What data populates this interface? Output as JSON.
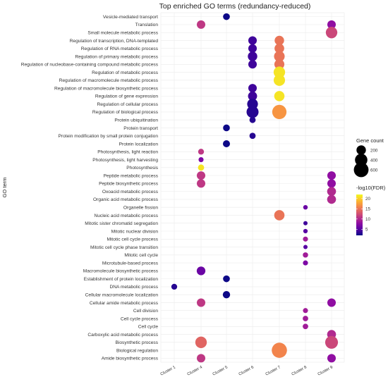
{
  "chart_data": {
    "type": "scatter",
    "title": "Top enriched GO terms (redundancy-reduced)",
    "xlabel": "",
    "ylabel": "GO term",
    "categories_x": [
      "Cluster 1",
      "Cluster 4",
      "Cluster 5",
      "Cluster 6",
      "Cluster 7",
      "Cluster 8",
      "Cluster 9"
    ],
    "categories_y": [
      "Vesicle-mediated transport",
      "Translation",
      "Small molecule metabolic process",
      "Regulation of transcription, DNA-templated",
      "Regulation of RNA metabolic process",
      "Regulation of primary metabolic process",
      "Regulation of nucleobase-containing compound metabolic process",
      "Regulation of metabolic process",
      "Regulation of macromolecule metabolic process",
      "Regulation of macromolecule biosynthetic process",
      "Regulation of gene expression",
      "Regulation of cellular process",
      "Regulation of biological process",
      "Protein ubiquitination",
      "Protein transport",
      "Protein modification by small protein conjugation",
      "Protein localization",
      "Photosynthesis, light reaction",
      "Photosynthesis, light harvesting",
      "Photosynthesis",
      "Peptide metabolic process",
      "Peptide biosynthetic process",
      "Oxoacid metabolic process",
      "Organic acid metabolic process",
      "Organelle fission",
      "Nucleic acid metabolic process",
      "Mitotic sister chromatid segregation",
      "Mitotic nuclear division",
      "Mitotic cell cycle process",
      "Mitotic cell cycle phase transition",
      "Mitotic cell cycle",
      "Microtubule-based process",
      "Macromolecule biosynthetic process",
      "Establishment of protein localization",
      "DNA metabolic process",
      "Cellular macromolecule localization",
      "Cellular amide metabolic process",
      "Cell division",
      "Cell cycle process",
      "Cell cycle",
      "Carboxylic acid metabolic process",
      "Biosynthetic process",
      "Biological regulation",
      "Amide biosynthetic process"
    ],
    "points": [
      {
        "term": "Vesicle-mediated transport",
        "cluster": "Cluster 5",
        "count": 80,
        "neglog10fdr": 2
      },
      {
        "term": "Translation",
        "cluster": "Cluster 4",
        "count": 150,
        "neglog10fdr": 11
      },
      {
        "term": "Translation",
        "cluster": "Cluster 9",
        "count": 150,
        "neglog10fdr": 8
      },
      {
        "term": "Small molecule metabolic process",
        "cluster": "Cluster 9",
        "count": 330,
        "neglog10fdr": 12
      },
      {
        "term": "Regulation of transcription, DNA-templated",
        "cluster": "Cluster 6",
        "count": 150,
        "neglog10fdr": 4
      },
      {
        "term": "Regulation of transcription, DNA-templated",
        "cluster": "Cluster 7",
        "count": 200,
        "neglog10fdr": 15
      },
      {
        "term": "Regulation of RNA metabolic process",
        "cluster": "Cluster 6",
        "count": 150,
        "neglog10fdr": 4
      },
      {
        "term": "Regulation of RNA metabolic process",
        "cluster": "Cluster 7",
        "count": 210,
        "neglog10fdr": 15
      },
      {
        "term": "Regulation of primary metabolic process",
        "cluster": "Cluster 6",
        "count": 200,
        "neglog10fdr": 4
      },
      {
        "term": "Regulation of primary metabolic process",
        "cluster": "Cluster 7",
        "count": 270,
        "neglog10fdr": 15
      },
      {
        "term": "Regulation of nucleobase-containing compound metabolic process",
        "cluster": "Cluster 6",
        "count": 150,
        "neglog10fdr": 4
      },
      {
        "term": "Regulation of nucleobase-containing compound metabolic process",
        "cluster": "Cluster 7",
        "count": 230,
        "neglog10fdr": 15
      },
      {
        "term": "Regulation of metabolic process",
        "cluster": "Cluster 7",
        "count": 330,
        "neglog10fdr": 21
      },
      {
        "term": "Regulation of macromolecule metabolic process",
        "cluster": "Cluster 7",
        "count": 320,
        "neglog10fdr": 21
      },
      {
        "term": "Regulation of macromolecule biosynthetic process",
        "cluster": "Cluster 6",
        "count": 150,
        "neglog10fdr": 4
      },
      {
        "term": "Regulation of gene expression",
        "cluster": "Cluster 6",
        "count": 180,
        "neglog10fdr": 4
      },
      {
        "term": "Regulation of gene expression",
        "cluster": "Cluster 7",
        "count": 250,
        "neglog10fdr": 21
      },
      {
        "term": "Regulation of cellular process",
        "cluster": "Cluster 6",
        "count": 280,
        "neglog10fdr": 3
      },
      {
        "term": "Regulation of biological process",
        "cluster": "Cluster 6",
        "count": 370,
        "neglog10fdr": 3
      },
      {
        "term": "Regulation of biological process",
        "cluster": "Cluster 7",
        "count": 560,
        "neglog10fdr": 17
      },
      {
        "term": "Protein ubiquitination",
        "cluster": "Cluster 6",
        "count": 60,
        "neglog10fdr": 3
      },
      {
        "term": "Protein transport",
        "cluster": "Cluster 5",
        "count": 80,
        "neglog10fdr": 2
      },
      {
        "term": "Protein modification by small protein conjugation",
        "cluster": "Cluster 6",
        "count": 60,
        "neglog10fdr": 3
      },
      {
        "term": "Protein localization",
        "cluster": "Cluster 5",
        "count": 90,
        "neglog10fdr": 2
      },
      {
        "term": "Photosynthesis, light reaction",
        "cluster": "Cluster 4",
        "count": 50,
        "neglog10fdr": 11
      },
      {
        "term": "Photosynthesis, light harvesting",
        "cluster": "Cluster 4",
        "count": 30,
        "neglog10fdr": 7
      },
      {
        "term": "Photosynthesis",
        "cluster": "Cluster 4",
        "count": 60,
        "neglog10fdr": 21
      },
      {
        "term": "Peptide metabolic process",
        "cluster": "Cluster 4",
        "count": 150,
        "neglog10fdr": 11
      },
      {
        "term": "Peptide metabolic process",
        "cluster": "Cluster 9",
        "count": 150,
        "neglog10fdr": 8
      },
      {
        "term": "Peptide biosynthetic process",
        "cluster": "Cluster 4",
        "count": 150,
        "neglog10fdr": 11
      },
      {
        "term": "Peptide biosynthetic process",
        "cluster": "Cluster 9",
        "count": 150,
        "neglog10fdr": 8
      },
      {
        "term": "Oxoacid metabolic process",
        "cluster": "Cluster 9",
        "count": 170,
        "neglog10fdr": 10
      },
      {
        "term": "Organic acid metabolic process",
        "cluster": "Cluster 9",
        "count": 170,
        "neglog10fdr": 10
      },
      {
        "term": "Organelle fission",
        "cluster": "Cluster 8",
        "count": 20,
        "neglog10fdr": 6
      },
      {
        "term": "Nucleic acid metabolic process",
        "cluster": "Cluster 7",
        "count": 250,
        "neglog10fdr": 15
      },
      {
        "term": "Mitotic sister chromatid segregation",
        "cluster": "Cluster 8",
        "count": 15,
        "neglog10fdr": 4
      },
      {
        "term": "Mitotic nuclear division",
        "cluster": "Cluster 8",
        "count": 18,
        "neglog10fdr": 5
      },
      {
        "term": "Mitotic cell cycle process",
        "cluster": "Cluster 8",
        "count": 30,
        "neglog10fdr": 9
      },
      {
        "term": "Mitotic cell cycle phase transition",
        "cluster": "Cluster 8",
        "count": 15,
        "neglog10fdr": 5
      },
      {
        "term": "Mitotic cell cycle",
        "cluster": "Cluster 8",
        "count": 35,
        "neglog10fdr": 9
      },
      {
        "term": "Microtubule-based process",
        "cluster": "Cluster 8",
        "count": 30,
        "neglog10fdr": 7
      },
      {
        "term": "Macromolecule biosynthetic process",
        "cluster": "Cluster 4",
        "count": 160,
        "neglog10fdr": 6
      },
      {
        "term": "Establishment of protein localization",
        "cluster": "Cluster 5",
        "count": 80,
        "neglog10fdr": 2
      },
      {
        "term": "DNA metabolic process",
        "cluster": "Cluster 1",
        "count": 50,
        "neglog10fdr": 3
      },
      {
        "term": "Cellular macromolecule localization",
        "cluster": "Cluster 5",
        "count": 100,
        "neglog10fdr": 2
      },
      {
        "term": "Cellular amide metabolic process",
        "cluster": "Cluster 4",
        "count": 150,
        "neglog10fdr": 11
      },
      {
        "term": "Cellular amide metabolic process",
        "cluster": "Cluster 9",
        "count": 150,
        "neglog10fdr": 8
      },
      {
        "term": "Cell division",
        "cluster": "Cluster 8",
        "count": 30,
        "neglog10fdr": 9
      },
      {
        "term": "Cell cycle process",
        "cluster": "Cluster 8",
        "count": 40,
        "neglog10fdr": 9
      },
      {
        "term": "Cell cycle",
        "cluster": "Cluster 8",
        "count": 40,
        "neglog10fdr": 9
      },
      {
        "term": "Carboxylic acid metabolic process",
        "cluster": "Cluster 9",
        "count": 170,
        "neglog10fdr": 10
      },
      {
        "term": "Biosynthetic process",
        "cluster": "Cluster 4",
        "count": 330,
        "neglog10fdr": 14
      },
      {
        "term": "Biosynthetic process",
        "cluster": "Cluster 9",
        "count": 430,
        "neglog10fdr": 12
      },
      {
        "term": "Biological regulation",
        "cluster": "Cluster 7",
        "count": 650,
        "neglog10fdr": 16
      },
      {
        "term": "Amide biosynthetic process",
        "cluster": "Cluster 4",
        "count": 150,
        "neglog10fdr": 11
      },
      {
        "term": "Amide biosynthetic process",
        "cluster": "Cluster 9",
        "count": 150,
        "neglog10fdr": 8
      }
    ],
    "size_legend": {
      "title": "Gene count",
      "values": [
        200,
        400,
        600
      ]
    },
    "color_legend": {
      "title": "-log10(FDR)",
      "ticks": [
        5,
        10,
        15,
        20
      ],
      "range": [
        2,
        22
      ],
      "colormap": "plasma"
    },
    "grid": true,
    "legend_position": "right"
  }
}
